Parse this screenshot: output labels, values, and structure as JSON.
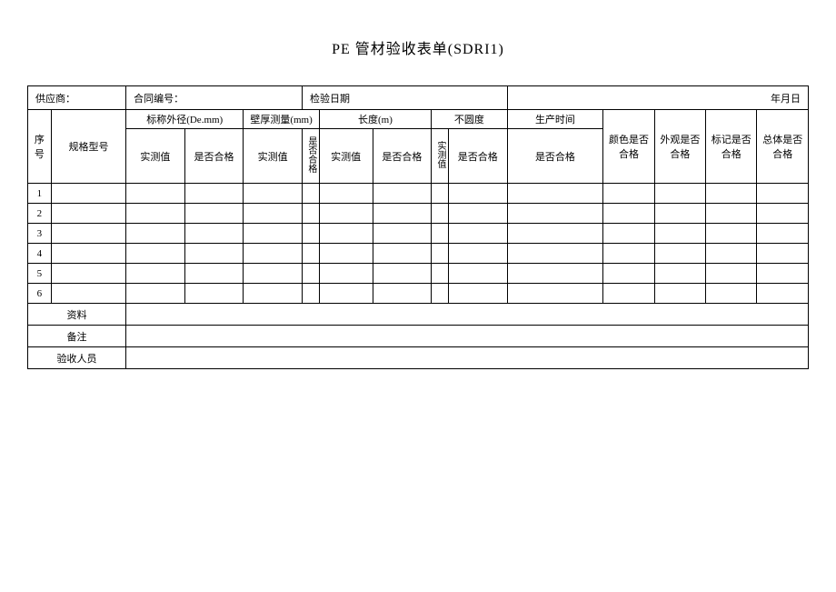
{
  "title": "PE 管材验收表单(SDRI1)",
  "info": {
    "supplier_label": "供应商：",
    "contract_label": "合同编号：",
    "inspect_date_label": "检验日期",
    "date_label": "年月日"
  },
  "headers": {
    "seq": "序号",
    "spec": "规格型号",
    "nominal_od": "标称外径(De.mm)",
    "wall": "壁厚测量(mm)",
    "length": "长度(m)",
    "roundness": "不圆度",
    "prod_time": "生产时间",
    "color_ok": "颜色是否合格",
    "appearance_ok": "外观是否合格",
    "marking_ok": "标记是否合格",
    "overall_ok": "总体是否合格",
    "measured": "实测值",
    "qualified": "是否合格",
    "qualified_v": "是否合格"
  },
  "rows": [
    "1",
    "2",
    "3",
    "4",
    "5",
    "6"
  ],
  "footer": {
    "material": "资料",
    "remark": "备注",
    "inspector": "验收人员"
  },
  "style": {
    "border_color": "#000000",
    "bg_color": "#ffffff",
    "title_fontsize": 16,
    "cell_fontsize": 11
  }
}
